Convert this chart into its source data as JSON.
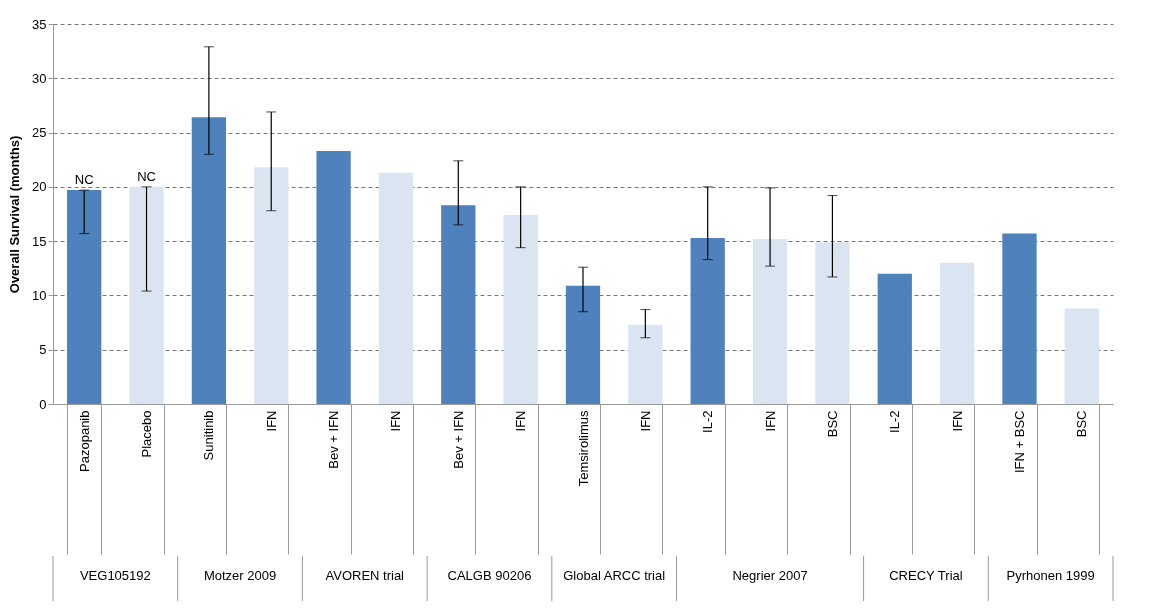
{
  "chart_data": {
    "type": "bar",
    "ylabel": "Overall Survival (months)",
    "categories": [
      "Pazopanib",
      "Placebo",
      "Sunitinib",
      "IFN",
      "Bev + IFN",
      "IFN",
      "Bev + IFN",
      "IFN",
      "Temsirolimus",
      "IFN",
      "IL-2",
      "IFN",
      "BSC",
      "IL-2",
      "IFN",
      "IFN + BSC",
      "BSC"
    ],
    "values": [
      19.7,
      20.0,
      26.4,
      21.8,
      23.3,
      21.3,
      18.3,
      17.4,
      10.9,
      7.3,
      15.3,
      15.2,
      14.9,
      12.0,
      13.0,
      15.7,
      8.8
    ],
    "colors": [
      "#4f81bd",
      "#dbe5f1",
      "#4f81bd",
      "#dbe5f1",
      "#4f81bd",
      "#dbe5f1",
      "#4f81bd",
      "#dbe5f1",
      "#4f81bd",
      "#dbe5f1",
      "#4f81bd",
      "#dbe5f1",
      "#dbe5f1",
      "#4f81bd",
      "#dbe5f1",
      "#4f81bd",
      "#dbe5f1"
    ],
    "errors": [
      [
        15.7,
        19.7
      ],
      [
        10.4,
        20.0
      ],
      [
        23.0,
        32.9
      ],
      [
        17.8,
        26.9
      ],
      null,
      null,
      [
        16.5,
        22.4
      ],
      [
        14.4,
        20.0
      ],
      [
        8.5,
        12.6
      ],
      [
        6.1,
        8.7
      ],
      [
        13.3,
        20.0
      ],
      [
        12.7,
        19.9
      ],
      [
        11.7,
        19.2
      ],
      null,
      null,
      null,
      null
    ],
    "value_labels": [
      "NC",
      "NC",
      null,
      null,
      null,
      null,
      null,
      null,
      null,
      null,
      null,
      null,
      null,
      null,
      null,
      null,
      null
    ],
    "annotations": [
      "VEG105192",
      "Motzer 2009",
      "AVOREN trial",
      "CALGB 90206",
      "Global ARCC trial",
      "Negrier 2007",
      "CRECY Trial",
      "Pyrhonen 1999"
    ],
    "ylim": [
      0,
      35
    ],
    "yticks": [
      0,
      5,
      10,
      15,
      20,
      25,
      30,
      35
    ],
    "grid": "y"
  }
}
